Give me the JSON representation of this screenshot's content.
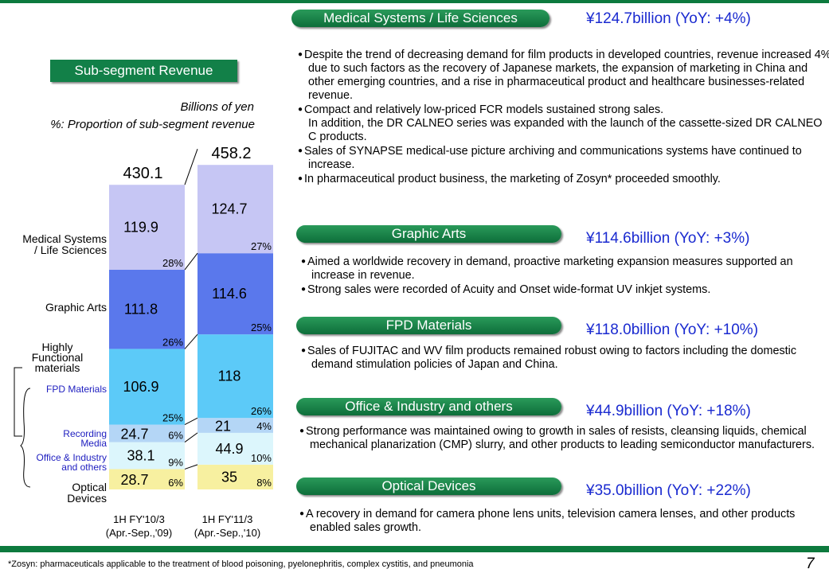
{
  "chart_data": {
    "type": "stacked-bar",
    "title": "Sub-segment Revenue",
    "unit_note": "Billions of yen",
    "share_note": "%: Proportion of sub-segment revenue",
    "categories": [
      "1H FY'10/3",
      "1H FY'11/3"
    ],
    "category_sublabels": [
      "(Apr.-Sep.,'09)",
      "(Apr.-Sep.,'10)"
    ],
    "totals": [
      430.1,
      458.2
    ],
    "group_label": "Highly Functional materials",
    "series": [
      {
        "name": "Optical Devices",
        "color": "#f7f0a0",
        "values": [
          28.7,
          35.0
        ],
        "shares": [
          "6%",
          "8%"
        ]
      },
      {
        "name": "Office & Industry and others",
        "color": "#dcf6fc",
        "values": [
          38.1,
          44.9
        ],
        "shares": [
          "9%",
          "10%"
        ]
      },
      {
        "name": "Recording Media",
        "color": "#b4d6f6",
        "values": [
          24.7,
          21.0
        ],
        "shares": [
          "6%",
          "4%"
        ]
      },
      {
        "name": "FPD Materials",
        "color": "#5ccaf8",
        "values": [
          106.9,
          118.0
        ],
        "shares": [
          "25%",
          "26%"
        ]
      },
      {
        "name": "Graphic Arts",
        "color": "#5a78ec",
        "values": [
          111.8,
          114.6
        ],
        "shares": [
          "26%",
          "25%"
        ]
      },
      {
        "name": "Medical Systems / Life Sciences",
        "color": "#c6c6f4",
        "values": [
          119.9,
          124.7
        ],
        "shares": [
          "28%",
          "27%"
        ]
      }
    ]
  },
  "sections": [
    {
      "title": "Medical Systems / Life Sciences",
      "headline": "¥124.7billion (YoY: +4%)",
      "bullets": [
        "Despite the trend of decreasing demand for film products in developed countries, revenue increased 4% due to such factors as the recovery of Japanese markets, the expansion of marketing in China and other emerging countries, and a rise in pharmaceutical product and healthcare businesses-related revenue.",
        "Compact and relatively low-priced FCR models sustained strong sales.\nIn addition, the DR CALNEO series was expanded with the launch of the cassette-sized DR CALNEO C products.",
        "Sales of SYNAPSE medical-use picture archiving and communications systems have continued to increase.",
        "In pharmaceutical product business, the marketing of Zosyn* proceeded smoothly."
      ]
    },
    {
      "title": "Graphic Arts",
      "headline": "¥114.6billion (YoY: +3%)",
      "bullets": [
        "Aimed a worldwide recovery in demand, proactive marketing expansion measures supported an increase in revenue.",
        "Strong sales were recorded of Acuity and Onset wide-format UV inkjet systems."
      ]
    },
    {
      "title": "FPD Materials",
      "headline": "¥118.0billion (YoY: +10%)",
      "bullets": [
        "Sales of FUJITAC and WV film products remained robust owing to factors including the domestic demand stimulation policies of Japan and China."
      ]
    },
    {
      "title": "Office & Industry and others",
      "headline": "¥44.9billion (YoY: +18%)",
      "bullets": [
        "Strong performance was maintained owing to growth in sales of resists, cleansing liquids, chemical mechanical planarization (CMP) slurry, and other products to leading semiconductor manufacturers."
      ]
    },
    {
      "title": "Optical Devices",
      "headline": "¥35.0billion (YoY: +22%)",
      "bullets": [
        "A recovery in demand for camera phone lens units, television camera lenses, and other products enabled sales growth."
      ]
    }
  ],
  "footnote": "*Zosyn: pharmaceuticals applicable to the treatment of blood poisoning, pyelonephritis, complex cystitis, and pneumonia",
  "page_number": "7"
}
